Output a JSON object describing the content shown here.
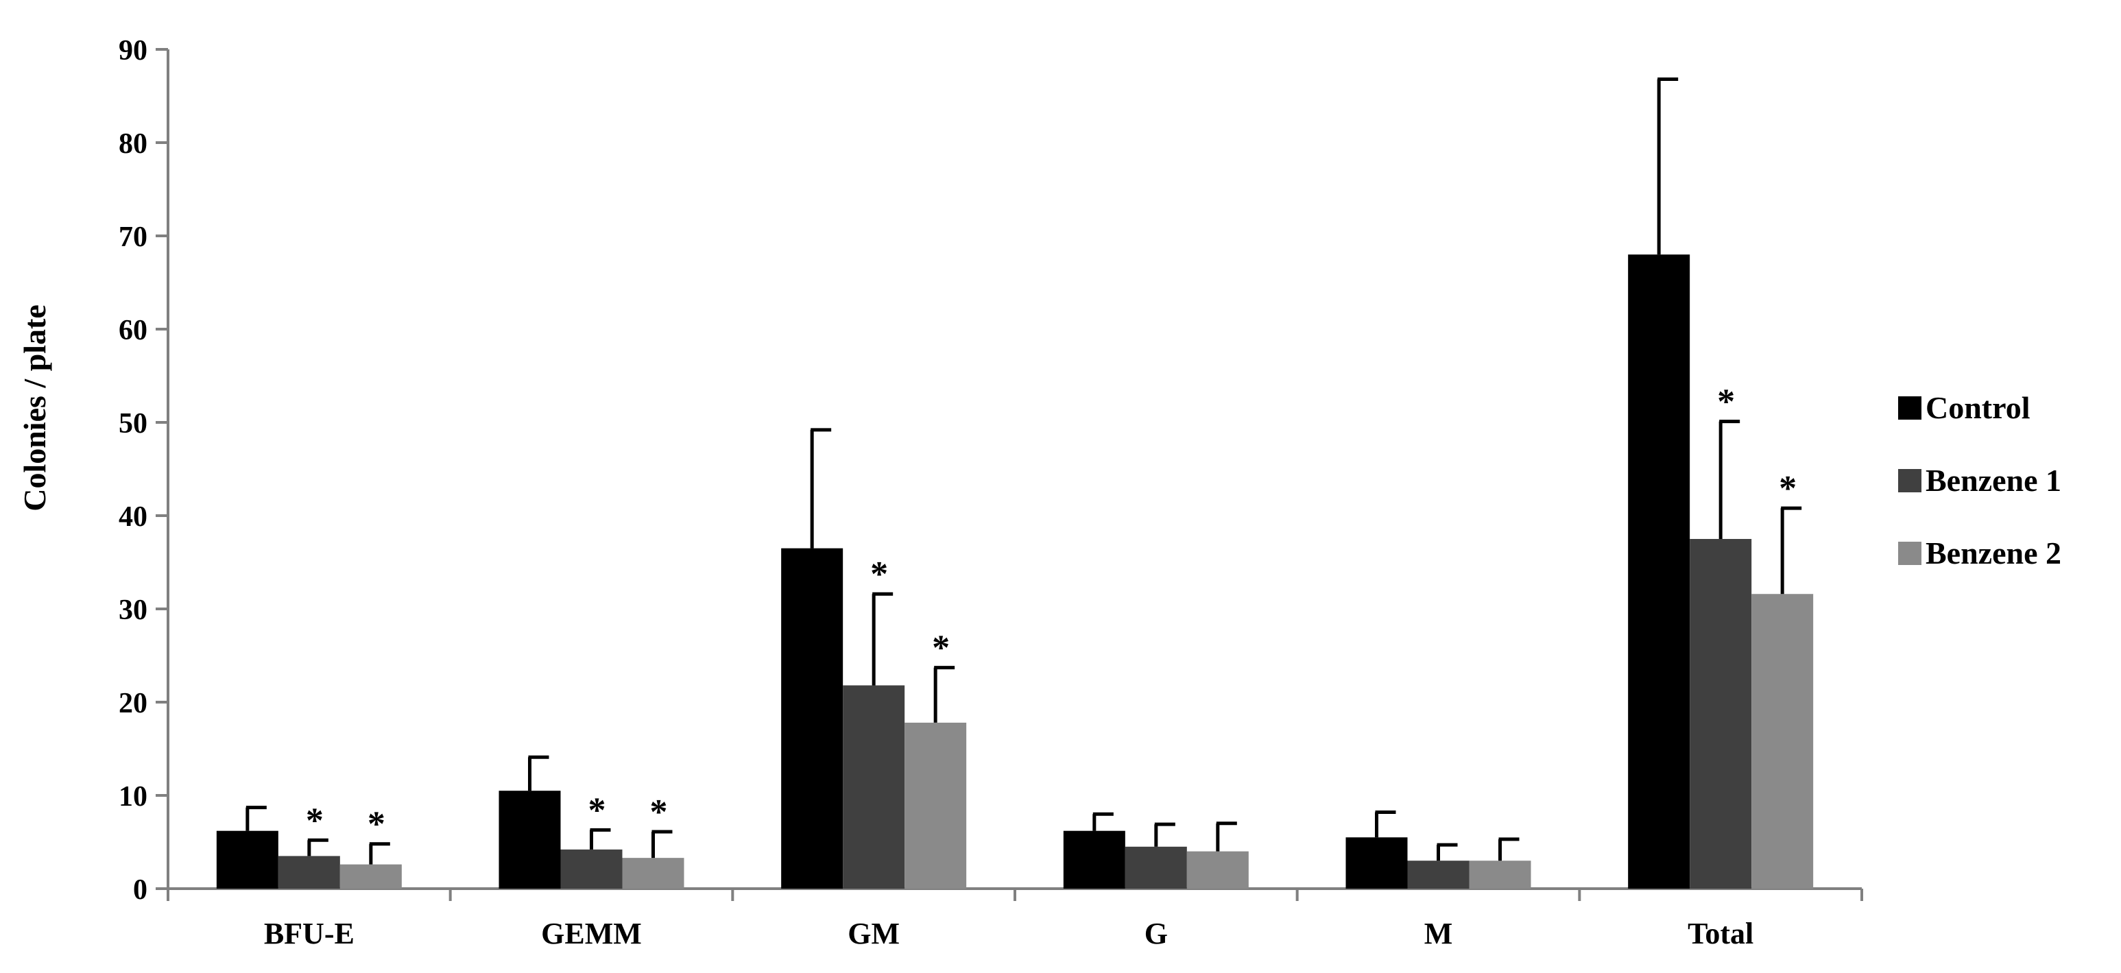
{
  "chart_data": {
    "type": "bar",
    "title": "",
    "xlabel": "",
    "ylabel": "Colonies / plate",
    "ylim": [
      0,
      90
    ],
    "yticks": [
      0,
      10,
      20,
      30,
      40,
      50,
      60,
      70,
      80,
      90
    ],
    "grid": false,
    "legend_position": "right",
    "categories": [
      "BFU-E",
      "GEMM",
      "GM",
      "G",
      "M",
      "Total"
    ],
    "series": [
      {
        "name": "Control",
        "color": "#000000",
        "values": [
          6.2,
          10.5,
          36.5,
          6.2,
          5.5,
          68
        ],
        "errors": [
          2.5,
          3.6,
          12.7,
          1.8,
          2.7,
          18.8
        ],
        "significant": [
          false,
          false,
          false,
          false,
          false,
          false
        ]
      },
      {
        "name": "Benzene 1",
        "color": "#404040",
        "values": [
          3.5,
          4.2,
          21.8,
          4.5,
          3.0,
          37.5
        ],
        "errors": [
          1.7,
          2.1,
          9.8,
          2.4,
          1.7,
          12.6
        ],
        "significant": [
          true,
          true,
          true,
          false,
          false,
          true
        ]
      },
      {
        "name": "Benzene 2",
        "color": "#8a8a8a",
        "values": [
          2.6,
          3.3,
          17.8,
          4.0,
          3.0,
          31.6
        ],
        "errors": [
          2.2,
          2.8,
          5.9,
          3.0,
          2.3,
          9.2
        ],
        "significant": [
          true,
          true,
          true,
          false,
          false,
          true
        ]
      }
    ],
    "annotations": {
      "significance_marker": "*"
    }
  }
}
